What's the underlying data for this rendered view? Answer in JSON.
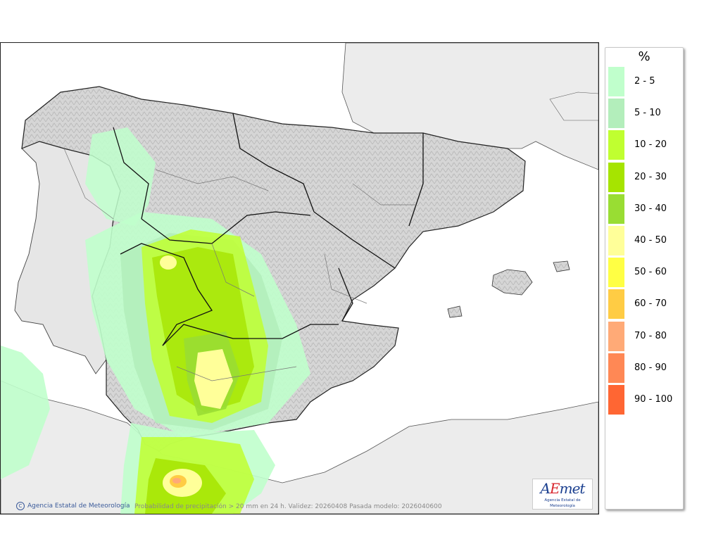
{
  "map": {
    "credit": "Agencia Estatal de Meteorología",
    "copyright_symbol": "C",
    "caption": "Probabilidad de precipitación > 20 mm en 24 h. Validez: 20260408 Pasada modelo: 2026040600",
    "logo": {
      "word_part1": "A",
      "word_part2": "E",
      "word_part3": "met",
      "subtitle": "Agencia Estatal de Meteorología"
    }
  },
  "legend": {
    "title": "%",
    "items": [
      {
        "label": "2 - 5",
        "color": "#c0ffcc"
      },
      {
        "label": "5 - 10",
        "color": "#b3eebb"
      },
      {
        "label": "10 - 20",
        "color": "#c0ff30"
      },
      {
        "label": "20 - 30",
        "color": "#a6e400"
      },
      {
        "label": "30 - 40",
        "color": "#99dd33"
      },
      {
        "label": "40 - 50",
        "color": "#ffff99"
      },
      {
        "label": "50 - 60",
        "color": "#ffff44"
      },
      {
        "label": "60 - 70",
        "color": "#ffcc44"
      },
      {
        "label": "70 - 80",
        "color": "#ffaa77"
      },
      {
        "label": "80 - 90",
        "color": "#ff8855"
      },
      {
        "label": "90 - 100",
        "color": "#ff6633"
      }
    ]
  }
}
